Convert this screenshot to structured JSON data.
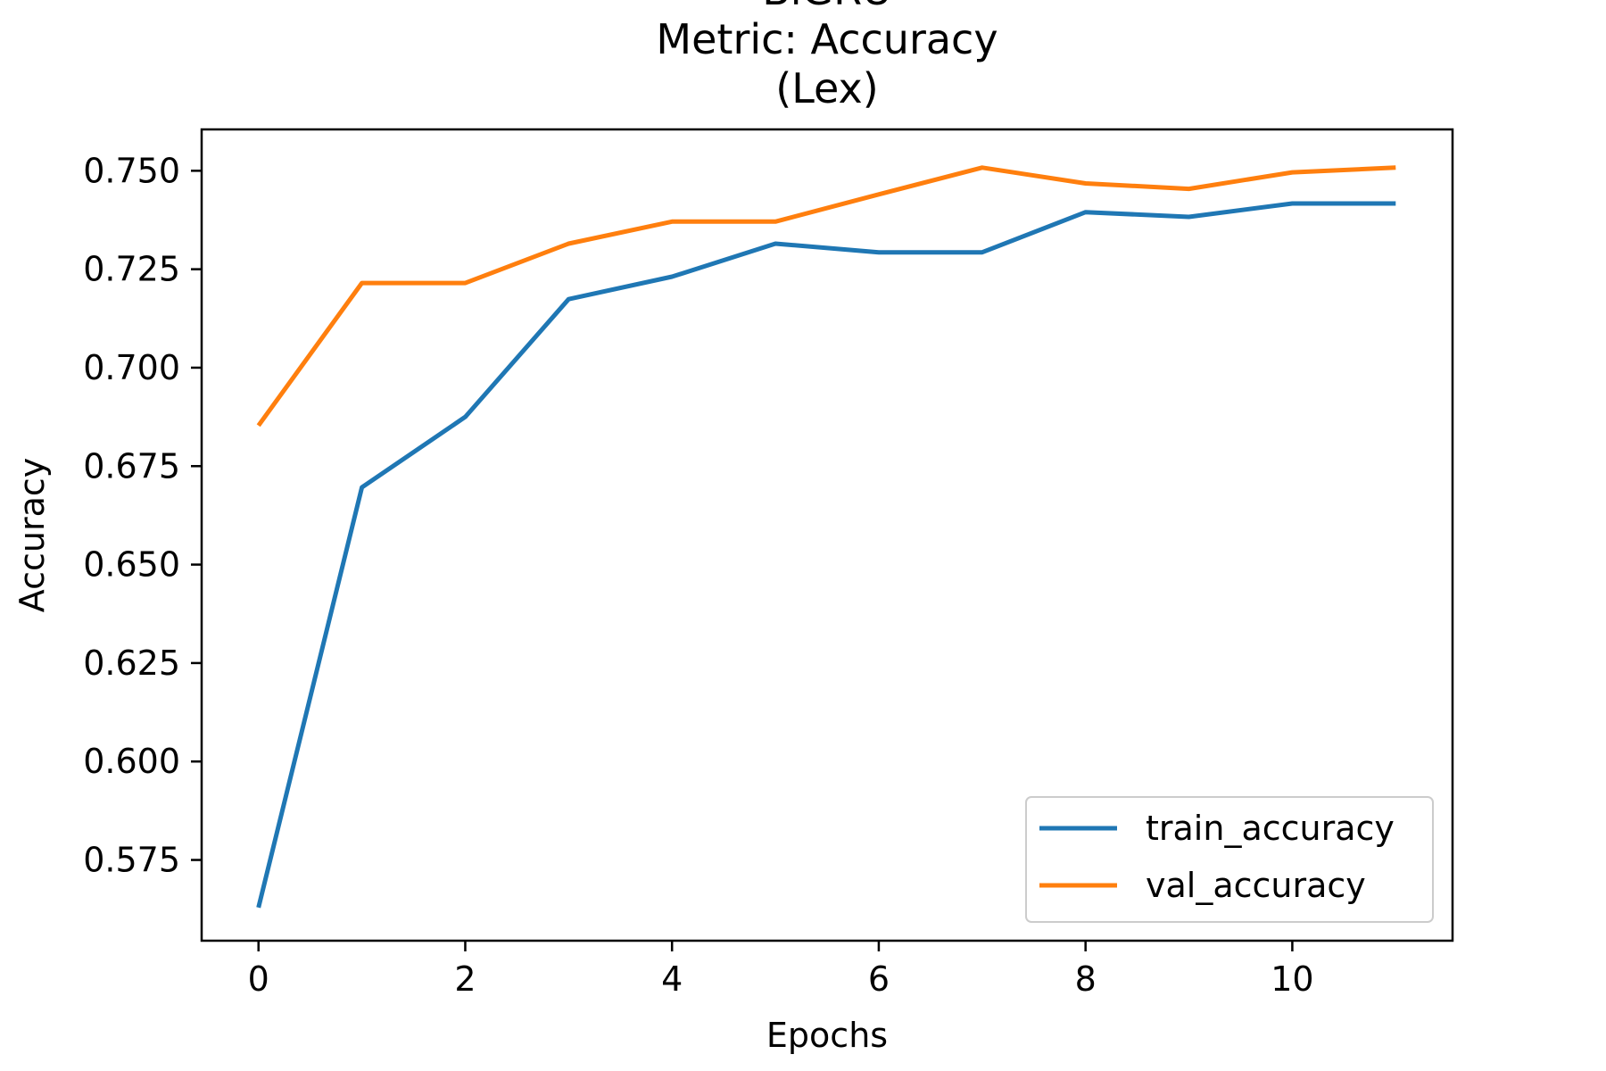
{
  "chart_data": {
    "type": "line",
    "title_lines": [
      "BiGRU",
      "Metric: Accuracy",
      "(Lex)"
    ],
    "xlabel": "Epochs",
    "ylabel": "Accuracy",
    "xlim": [
      -0.55,
      11.55
    ],
    "ylim": [
      0.5545,
      0.7605
    ],
    "xticks": [
      0,
      2,
      4,
      6,
      8,
      10
    ],
    "xtick_labels": [
      "0",
      "2",
      "4",
      "6",
      "8",
      "10"
    ],
    "yticks": [
      0.575,
      0.6,
      0.625,
      0.65,
      0.675,
      0.7,
      0.725,
      0.75
    ],
    "ytick_labels": [
      "0.575",
      "0.600",
      "0.625",
      "0.650",
      "0.675",
      "0.700",
      "0.725",
      "0.750"
    ],
    "x": [
      0,
      1,
      2,
      3,
      4,
      5,
      6,
      7,
      8,
      9,
      10,
      11
    ],
    "series": [
      {
        "name": "train_accuracy",
        "color": "#1f77b4",
        "values": [
          0.5629,
          0.6696,
          0.6875,
          0.7174,
          0.7231,
          0.7315,
          0.7293,
          0.7293,
          0.7395,
          0.7383,
          0.7417,
          0.7417
        ]
      },
      {
        "name": "val_accuracy",
        "color": "#ff7f0e",
        "values": [
          0.6853,
          0.7215,
          0.7215,
          0.7315,
          0.7371,
          0.7371,
          0.744,
          0.7508,
          0.7468,
          0.7454,
          0.7496,
          0.7508
        ]
      }
    ],
    "grid": false,
    "legend_position": "lower right"
  }
}
